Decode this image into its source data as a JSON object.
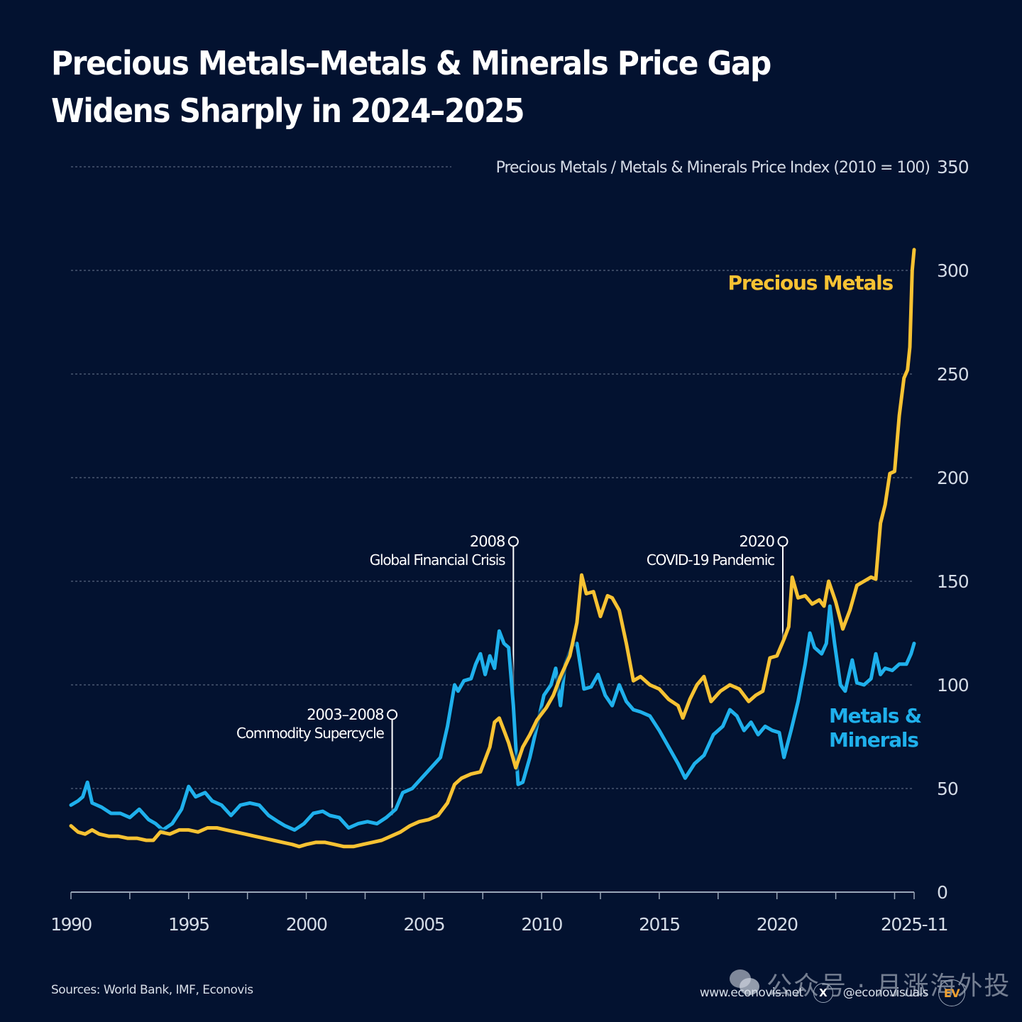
{
  "title": {
    "line1": "Precious Metals–Metals & Minerals Price Gap",
    "line2": "Widens Sharply in 2024–2025"
  },
  "footer": {
    "sources": "Sources: World Bank, IMF, Econovis",
    "website": "www.econovis.net",
    "x_icon": "x-logo-icon",
    "x_glyph": "X",
    "handle": "@econovisuals",
    "logo_text": "EV"
  },
  "watermark": {
    "icon": "wechat-icon",
    "text": "公众号 · 月涨海外投"
  },
  "colors": {
    "background": "#031230",
    "precious_metals": "#f7c233",
    "metals_minerals": "#1fb0ec",
    "grid": "#6b7890",
    "axis_text": "#d4dbe6",
    "annotation": "#ffffff"
  },
  "chart_data": {
    "type": "line",
    "title": "Precious Metals–Metals & Minerals Price Gap Widens Sharply in 2024–2025",
    "ylabel": "Precious Metals / Metals & Minerals Price Index (2010 = 100)",
    "xlabel": "",
    "xlim": [
      1990,
      2025.83
    ],
    "ylim": [
      0,
      350
    ],
    "yticks": [
      0,
      50,
      100,
      150,
      200,
      250,
      300,
      350
    ],
    "xtick_labels": [
      {
        "x": 1990,
        "label": "1990"
      },
      {
        "x": 1995,
        "label": "1995"
      },
      {
        "x": 2000,
        "label": "2000"
      },
      {
        "x": 2005,
        "label": "2005"
      },
      {
        "x": 2010,
        "label": "2010"
      },
      {
        "x": 2015,
        "label": "2015"
      },
      {
        "x": 2020,
        "label": "2020"
      },
      {
        "x": 2025.83,
        "label": "2025-11"
      }
    ],
    "minor_tick_step_years": 2.5,
    "grid": true,
    "series": [
      {
        "name": "Precious Metals",
        "label": "Precious Metals",
        "color": "#f7c233",
        "x": [
          1990.0,
          1990.3,
          1990.6,
          1990.9,
          1991.2,
          1991.6,
          1992.0,
          1992.4,
          1992.8,
          1993.2,
          1993.5,
          1993.8,
          1994.2,
          1994.6,
          1995.0,
          1995.4,
          1995.8,
          1996.2,
          1996.6,
          1997.0,
          1997.4,
          1997.8,
          1998.2,
          1998.6,
          1999.0,
          1999.4,
          1999.7,
          2000.0,
          2000.4,
          2000.8,
          2001.2,
          2001.6,
          2002.0,
          2002.4,
          2002.8,
          2003.2,
          2003.6,
          2004.0,
          2004.4,
          2004.8,
          2005.2,
          2005.6,
          2006.0,
          2006.3,
          2006.6,
          2007.0,
          2007.4,
          2007.8,
          2008.0,
          2008.2,
          2008.4,
          2008.6,
          2008.9,
          2009.2,
          2009.5,
          2009.8,
          2010.2,
          2010.5,
          2010.8,
          2011.2,
          2011.5,
          2011.7,
          2011.9,
          2012.2,
          2012.5,
          2012.8,
          2013.0,
          2013.3,
          2013.6,
          2013.9,
          2014.2,
          2014.6,
          2015.0,
          2015.4,
          2015.8,
          2016.0,
          2016.3,
          2016.6,
          2016.9,
          2017.2,
          2017.6,
          2018.0,
          2018.4,
          2018.8,
          2019.1,
          2019.4,
          2019.7,
          2020.0,
          2020.3,
          2020.5,
          2020.65,
          2020.9,
          2021.2,
          2021.5,
          2021.8,
          2022.0,
          2022.2,
          2022.5,
          2022.8,
          2023.1,
          2023.4,
          2023.7,
          2024.0,
          2024.2,
          2024.4,
          2024.6,
          2024.8,
          2025.0,
          2025.2,
          2025.4,
          2025.55,
          2025.65,
          2025.75,
          2025.83
        ],
        "values": [
          32,
          29,
          28,
          30,
          28,
          27,
          27,
          26,
          26,
          25,
          25,
          29,
          28,
          30,
          30,
          29,
          31,
          31,
          30,
          29,
          28,
          27,
          26,
          25,
          24,
          23,
          22,
          23,
          24,
          24,
          23,
          22,
          22,
          23,
          24,
          25,
          27,
          29,
          32,
          34,
          35,
          37,
          43,
          52,
          55,
          57,
          58,
          70,
          82,
          84,
          78,
          72,
          60,
          70,
          76,
          83,
          89,
          95,
          104,
          114,
          130,
          153,
          144,
          145,
          133,
          143,
          142,
          136,
          120,
          102,
          104,
          100,
          98,
          93,
          90,
          84,
          93,
          100,
          104,
          92,
          97,
          100,
          98,
          92,
          95,
          97,
          113,
          114,
          122,
          128,
          152,
          142,
          143,
          139,
          141,
          138,
          150,
          140,
          127,
          136,
          148,
          150,
          152,
          151,
          178,
          187,
          202,
          203,
          230,
          248,
          252,
          263,
          300,
          310
        ]
      },
      {
        "name": "Metals & Minerals",
        "label": "Metals & Minerals",
        "color": "#1fb0ec",
        "x": [
          1990.0,
          1990.3,
          1990.5,
          1990.7,
          1990.9,
          1991.3,
          1991.7,
          1992.1,
          1992.5,
          1992.9,
          1993.3,
          1993.6,
          1993.9,
          1994.3,
          1994.7,
          1995.0,
          1995.3,
          1995.7,
          1996.0,
          1996.4,
          1996.8,
          1997.2,
          1997.6,
          1998.0,
          1998.4,
          1998.8,
          1999.1,
          1999.5,
          1999.9,
          2000.3,
          2000.7,
          2001.0,
          2001.4,
          2001.8,
          2002.2,
          2002.6,
          2003.0,
          2003.4,
          2003.8,
          2004.1,
          2004.5,
          2004.9,
          2005.3,
          2005.7,
          2006.0,
          2006.3,
          2006.45,
          2006.7,
          2007.0,
          2007.2,
          2007.4,
          2007.6,
          2007.8,
          2008.0,
          2008.2,
          2008.4,
          2008.6,
          2008.8,
          2009.0,
          2009.2,
          2009.5,
          2009.8,
          2010.1,
          2010.4,
          2010.6,
          2010.8,
          2011.0,
          2011.3,
          2011.5,
          2011.8,
          2012.1,
          2012.4,
          2012.7,
          2013.0,
          2013.3,
          2013.6,
          2013.9,
          2014.2,
          2014.6,
          2015.0,
          2015.4,
          2015.8,
          2016.1,
          2016.5,
          2016.9,
          2017.3,
          2017.7,
          2018.0,
          2018.3,
          2018.6,
          2018.9,
          2019.2,
          2019.5,
          2019.8,
          2020.1,
          2020.3,
          2020.6,
          2020.9,
          2021.2,
          2021.4,
          2021.6,
          2021.9,
          2022.1,
          2022.25,
          2022.45,
          2022.7,
          2022.9,
          2023.2,
          2023.4,
          2023.7,
          2024.0,
          2024.2,
          2024.4,
          2024.6,
          2024.9,
          2025.2,
          2025.5,
          2025.7,
          2025.83
        ],
        "values": [
          42,
          44,
          46,
          53,
          43,
          41,
          38,
          38,
          36,
          40,
          35,
          33,
          30,
          33,
          40,
          51,
          46,
          48,
          44,
          42,
          37,
          42,
          43,
          42,
          37,
          34,
          32,
          30,
          33,
          38,
          39,
          37,
          36,
          31,
          33,
          34,
          33,
          36,
          40,
          48,
          50,
          55,
          60,
          65,
          80,
          100,
          97,
          102,
          103,
          110,
          115,
          105,
          114,
          108,
          126,
          120,
          118,
          90,
          52,
          53,
          65,
          80,
          95,
          100,
          108,
          90,
          110,
          119,
          120,
          98,
          99,
          105,
          95,
          90,
          100,
          92,
          88,
          87,
          85,
          78,
          70,
          62,
          55,
          62,
          66,
          76,
          80,
          88,
          85,
          78,
          82,
          76,
          80,
          78,
          77,
          65,
          78,
          92,
          110,
          125,
          118,
          115,
          120,
          138,
          120,
          100,
          97,
          112,
          101,
          100,
          103,
          115,
          105,
          108,
          107,
          110,
          110,
          115,
          120
        ]
      }
    ],
    "annotations": [
      {
        "year_label": "2003–2008",
        "text": "Commodity Supercycle",
        "x": 2003.65
      },
      {
        "year_label": "2008",
        "text": "Global Financial Crisis",
        "x": 2008.8
      },
      {
        "year_label": "2020",
        "text": "COVID-19 Pandemic",
        "x": 2020.25
      }
    ],
    "legend_placement": "inline-labels-right"
  }
}
